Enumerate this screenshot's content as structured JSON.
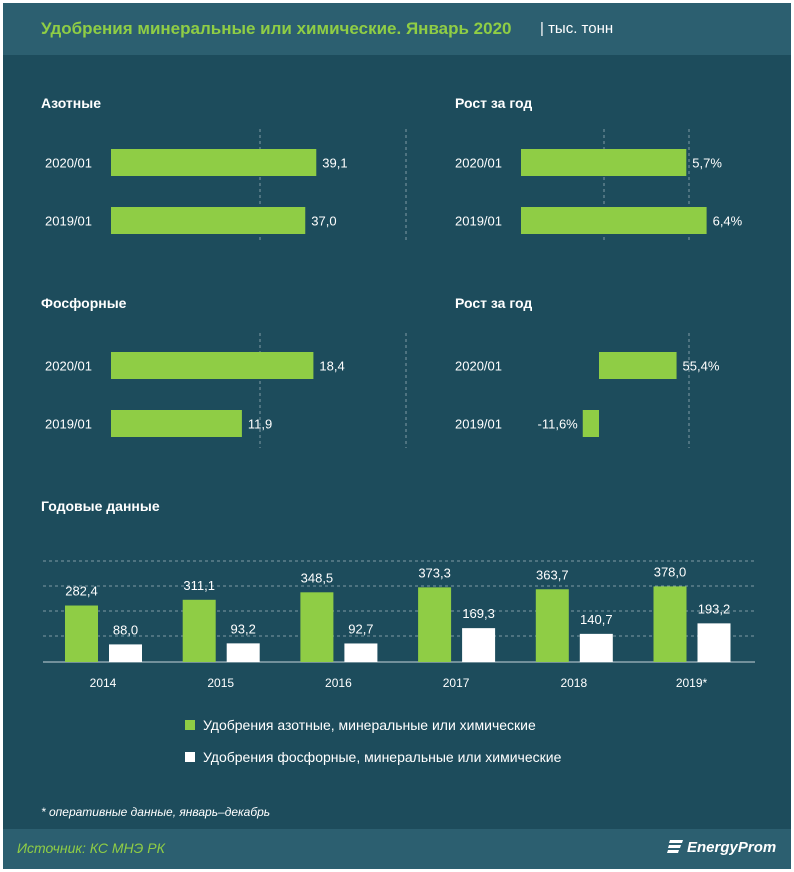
{
  "header": {
    "title": "Удобрения минеральные или химические. Январь 2020",
    "unit": "| тыс. тонн"
  },
  "colors": {
    "background": "#1d4c5c",
    "header_bg": "#2c5f70",
    "green": "#8fcd45",
    "white": "#ffffff"
  },
  "footnote": "* оперативные данные, январь–декабрь",
  "footer": {
    "source": "Источник: КС МНЭ РК",
    "logo": "EnergyProm"
  },
  "chart_data": [
    {
      "type": "bar",
      "orientation": "horizontal",
      "title": "Азотные",
      "categories": [
        "2020/01",
        "2019/01"
      ],
      "values": [
        39.1,
        37.0
      ],
      "labels": [
        "39,1",
        "37,0"
      ]
    },
    {
      "type": "bar",
      "orientation": "horizontal",
      "title": "Рост за год",
      "categories": [
        "2020/01",
        "2019/01"
      ],
      "values": [
        5.7,
        6.4
      ],
      "labels": [
        "5,7%",
        "6,4%"
      ]
    },
    {
      "type": "bar",
      "orientation": "horizontal",
      "title": "Фосфорные",
      "categories": [
        "2020/01",
        "2019/01"
      ],
      "values": [
        18.4,
        11.9
      ],
      "labels": [
        "18,4",
        "11,9"
      ]
    },
    {
      "type": "bar",
      "orientation": "horizontal",
      "title": "Рост за год",
      "categories": [
        "2020/01",
        "2019/01"
      ],
      "values": [
        55.4,
        -11.6
      ],
      "labels": [
        "55,4%",
        "-11,6%"
      ]
    },
    {
      "type": "bar",
      "title": "Годовые данные",
      "categories": [
        "2014",
        "2015",
        "2016",
        "2017",
        "2018",
        "2019*"
      ],
      "series": [
        {
          "name": "Удобрения азотные, минеральные или химические",
          "color": "#8fcd45",
          "values": [
            282.4,
            311.1,
            348.5,
            373.3,
            363.7,
            378.0
          ],
          "labels": [
            "282,4",
            "311,1",
            "348,5",
            "373,3",
            "363,7",
            "378,0"
          ]
        },
        {
          "name": "Удобрения фосфорные, минеральные или химические",
          "color": "#ffffff",
          "values": [
            88.0,
            93.2,
            92.7,
            169.3,
            140.7,
            193.2
          ],
          "labels": [
            "88,0",
            "93,2",
            "92,7",
            "169,3",
            "140,7",
            "193,2"
          ]
        }
      ],
      "grid": true,
      "legend": "bottom"
    }
  ]
}
